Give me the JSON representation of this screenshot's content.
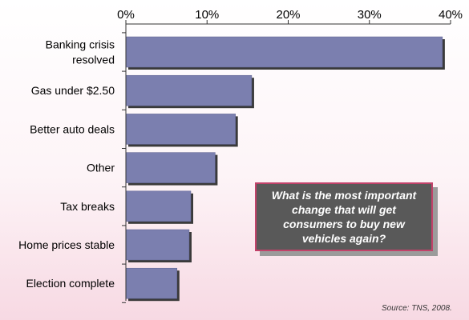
{
  "chart_data": {
    "type": "bar",
    "orientation": "horizontal",
    "categories": [
      "Banking crisis\nresolved",
      "Gas under $2.50",
      "Better auto deals",
      "Other",
      "Tax breaks",
      "Home prices stable",
      "Election complete"
    ],
    "values": [
      39,
      15.5,
      13.5,
      11,
      8,
      7.8,
      6.3
    ],
    "xlim": [
      0,
      40
    ],
    "x_ticks": [
      "0%",
      "10%",
      "20%",
      "30%",
      "40%"
    ],
    "x_tick_values": [
      0,
      10,
      20,
      30,
      40
    ],
    "x_axis_position": "top",
    "grid": false,
    "bar_color": "#7b7faf",
    "annotation": "What is the most important change that will get consumers to buy new vehicles again?",
    "source": "Source: TNS, 2008."
  }
}
